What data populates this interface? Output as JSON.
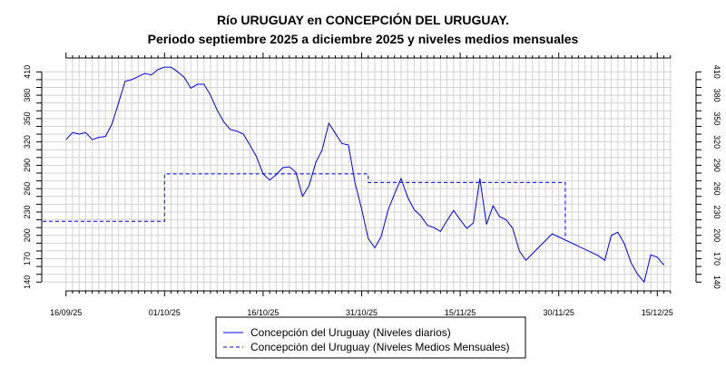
{
  "chart_data": {
    "type": "line",
    "title": "Río URUGUAY en CONCEPCIÓN DEL URUGUAY.",
    "subtitle": "Periodo septiembre 2025 a diciembre 2025 y niveles medios mensuales",
    "xlabel": "",
    "ylabel": "",
    "start_date": "16/09/25",
    "x_tick_labels": [
      "16/09/25",
      "01/10/25",
      "16/10/25",
      "31/10/25",
      "15/11/25",
      "30/11/25",
      "15/12/25"
    ],
    "x_tick_days": [
      0,
      15,
      30,
      45,
      60,
      75,
      90
    ],
    "y_tick_labels": [
      "140",
      "170",
      "200",
      "230",
      "260",
      "290",
      "320",
      "350",
      "380",
      "410"
    ],
    "ylim": [
      140,
      410
    ],
    "grid": true,
    "legend_position": "bottom-center",
    "series": [
      {
        "name": "Concepción del Uruguay (Niveles diarios)",
        "style": "solid",
        "color": "#0000ff",
        "day_offsets": [
          0,
          1,
          2,
          3,
          4,
          5,
          6,
          7,
          8,
          9,
          10,
          11,
          12,
          13,
          14,
          15,
          16,
          17,
          18,
          19,
          20,
          21,
          22,
          23,
          24,
          25,
          26,
          27,
          28,
          29,
          30,
          31,
          32,
          33,
          34,
          35,
          36,
          37,
          38,
          39,
          40,
          41,
          42,
          43,
          44,
          45,
          46,
          47,
          48,
          49,
          50,
          51,
          52,
          53,
          54,
          55,
          56,
          57,
          58,
          59,
          60,
          61,
          62,
          63,
          64,
          65,
          66,
          67,
          68,
          69,
          70,
          74,
          81,
          82,
          83,
          84,
          85,
          86,
          87,
          88,
          89,
          90,
          91
        ],
        "values": [
          323,
          332,
          330,
          332,
          323,
          326,
          327,
          343,
          370,
          398,
          400,
          404,
          408,
          406,
          413,
          416,
          416,
          410,
          403,
          389,
          394,
          394,
          380,
          361,
          346,
          336,
          334,
          330,
          316,
          301,
          279,
          271,
          278,
          287,
          288,
          281,
          250,
          264,
          293,
          310,
          344,
          331,
          318,
          316,
          267,
          234,
          196,
          184,
          199,
          232,
          253,
          273,
          249,
          233,
          225,
          213,
          210,
          205,
          219,
          232,
          220,
          209,
          216,
          273,
          214,
          238,
          224,
          220,
          209,
          180,
          168,
          202,
          174,
          168,
          200,
          204,
          189,
          165,
          150,
          140,
          175,
          172,
          162
        ]
      },
      {
        "name": "Concepción del Uruguay (Niveles Medios Mensuales)",
        "style": "dashed",
        "color": "#0000ff",
        "months": [
          "septiembre 2025",
          "octubre 2025",
          "noviembre 2025",
          "diciembre 2025"
        ],
        "values": [
          218,
          279,
          268,
          197
        ]
      }
    ]
  }
}
